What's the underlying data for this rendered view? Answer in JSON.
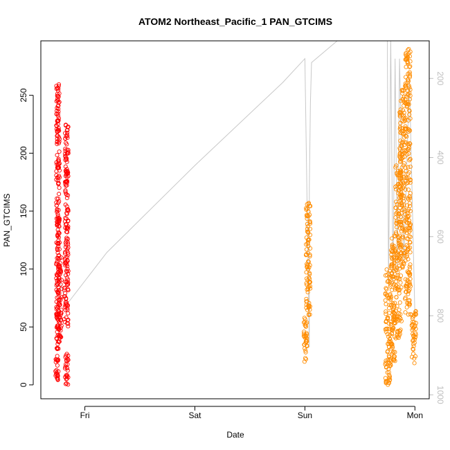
{
  "chart_data": {
    "type": "scatter",
    "title": "ATOM2 Northeast_Pacific_1 PAN_GTCIMS",
    "xlabel": "Date",
    "ylabel": "PAN_GTCIMS",
    "y_ticks": [
      0,
      50,
      100,
      150,
      200,
      250
    ],
    "ylim": [
      -12,
      297
    ],
    "x_ticks": [
      {
        "day": 1,
        "label": "Fri"
      },
      {
        "day": 2,
        "label": "Sat"
      },
      {
        "day": 3,
        "label": "Sun"
      },
      {
        "day": 4,
        "label": "Mon"
      }
    ],
    "xlim": [
      0.6,
      4.13
    ],
    "secondary_axis": {
      "ticks": [
        200,
        400,
        600,
        800,
        1000
      ],
      "range": [
        105,
        1010
      ],
      "reversed": true,
      "color": "#bebebe"
    },
    "grid": false,
    "series": [
      {
        "color": "#ff0000",
        "clusters": [
          {
            "x": [
              0.73,
              0.76
            ],
            "y": [
              0,
              25
            ]
          },
          {
            "x": [
              0.74,
              0.77
            ],
            "y": [
              30,
              260
            ]
          },
          {
            "x": [
              0.75,
              0.79
            ],
            "y": [
              40,
              110
            ]
          },
          {
            "x": [
              0.81,
              0.85
            ],
            "y": [
              50,
              100
            ]
          },
          {
            "x": [
              0.82,
              0.85
            ],
            "y": [
              0,
              30
            ]
          },
          {
            "x": [
              0.82,
              0.85
            ],
            "y": [
              100,
              228
            ]
          }
        ]
      },
      {
        "color": "#ff8c00",
        "clusters": [
          {
            "x": [
              2.99,
              3.02
            ],
            "y": [
              20,
              60
            ]
          },
          {
            "x": [
              3.01,
              3.05
            ],
            "y": [
              60,
              160
            ]
          },
          {
            "x": [
              3.73,
              3.78
            ],
            "y": [
              0,
              100
            ]
          },
          {
            "x": [
              3.78,
              3.82
            ],
            "y": [
              20,
              130
            ]
          },
          {
            "x": [
              3.82,
              3.88
            ],
            "y": [
              40,
              190
            ]
          },
          {
            "x": [
              3.86,
              3.91
            ],
            "y": [
              100,
              255
            ]
          },
          {
            "x": [
              3.91,
              3.96
            ],
            "y": [
              60,
              290
            ]
          },
          {
            "x": [
              3.97,
              4.01
            ],
            "y": [
              18,
              65
            ]
          }
        ]
      }
    ],
    "altitude_line": {
      "color": "#c8c8c8",
      "x": [
        0.74,
        0.76,
        0.78,
        0.8,
        0.84,
        1.2,
        2.0,
        2.8,
        3.0,
        3.02,
        3.04,
        3.04,
        3.05,
        3.06,
        3.4,
        3.75,
        3.75,
        3.76,
        3.78,
        3.8,
        3.82,
        3.84,
        3.86,
        3.9,
        3.95,
        4.0
      ],
      "y": [
        730,
        700,
        720,
        740,
        770,
        640,
        420,
        210,
        150,
        520,
        880,
        480,
        260,
        160,
        80,
        50,
        150,
        720,
        100,
        720,
        150,
        690,
        150,
        660,
        200,
        800
      ]
    }
  }
}
